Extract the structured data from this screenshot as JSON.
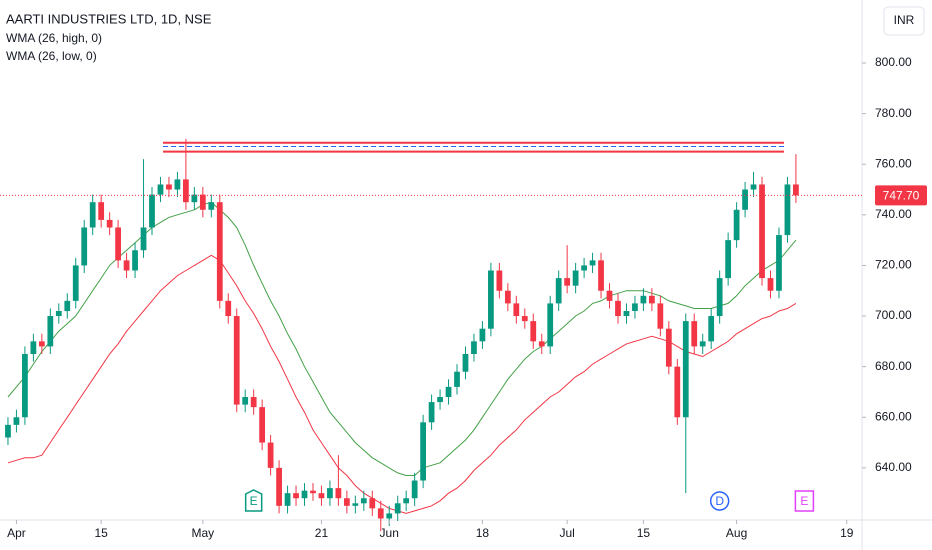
{
  "chart_data": {
    "type": "candlestick",
    "title": "AARTI INDUSTRIES LTD, 1D, NSE",
    "currency": "INR",
    "up_color": "#089981",
    "down_color": "#f23645",
    "open": [
      652,
      657,
      660,
      685,
      690,
      688,
      700,
      702,
      706,
      720,
      735,
      745,
      738,
      735,
      722,
      718,
      726,
      735,
      748,
      752,
      750,
      754,
      745,
      748,
      742,
      745,
      706,
      700,
      665,
      668,
      664,
      650,
      640,
      625,
      630,
      628,
      631,
      630,
      628,
      632,
      628,
      625,
      626,
      628,
      624,
      620,
      622,
      626,
      628,
      635,
      658,
      666,
      668,
      672,
      678,
      685,
      690,
      695,
      718,
      710,
      705,
      700,
      698,
      690,
      688,
      705,
      715,
      712,
      718,
      720,
      722,
      710,
      706,
      700,
      702,
      705,
      708,
      705,
      695,
      680,
      660,
      698,
      688,
      690,
      700,
      715,
      730,
      742,
      750,
      752,
      715,
      710,
      732,
      752
    ],
    "high": [
      660,
      663,
      688,
      693,
      693,
      703,
      705,
      709,
      723,
      738,
      748,
      748,
      741,
      738,
      725,
      729,
      762,
      751,
      755,
      755,
      757,
      770,
      751,
      751,
      748,
      748,
      709,
      703,
      671,
      671,
      667,
      653,
      643,
      633,
      633,
      634,
      634,
      633,
      635,
      645,
      631,
      629,
      631,
      631,
      627,
      625,
      629,
      631,
      638,
      661,
      669,
      671,
      675,
      681,
      688,
      693,
      698,
      721,
      721,
      713,
      708,
      703,
      701,
      693,
      708,
      718,
      728,
      721,
      723,
      725,
      725,
      713,
      709,
      705,
      708,
      711,
      711,
      708,
      698,
      683,
      701,
      701,
      693,
      703,
      718,
      733,
      745,
      753,
      757,
      755,
      718,
      735,
      755,
      764
    ],
    "low": [
      649,
      654,
      657,
      682,
      685,
      685,
      697,
      699,
      703,
      717,
      732,
      735,
      732,
      719,
      715,
      715,
      723,
      732,
      745,
      747,
      747,
      742,
      742,
      739,
      739,
      703,
      697,
      662,
      662,
      661,
      647,
      637,
      622,
      622,
      625,
      625,
      627,
      625,
      625,
      625,
      622,
      622,
      623,
      621,
      615,
      617,
      619,
      623,
      625,
      632,
      655,
      663,
      665,
      669,
      675,
      682,
      687,
      692,
      707,
      702,
      697,
      695,
      687,
      685,
      685,
      702,
      709,
      709,
      715,
      717,
      707,
      703,
      697,
      697,
      699,
      702,
      702,
      692,
      677,
      657,
      630,
      685,
      685,
      687,
      697,
      712,
      727,
      739,
      747,
      712,
      707,
      707,
      729,
      744.7
    ],
    "close": [
      657,
      660,
      685,
      690,
      688,
      700,
      702,
      706,
      720,
      735,
      745,
      738,
      735,
      722,
      718,
      726,
      735,
      748,
      752,
      750,
      754,
      745,
      748,
      742,
      745,
      706,
      700,
      665,
      668,
      664,
      650,
      640,
      625,
      630,
      628,
      631,
      630,
      628,
      632,
      628,
      625,
      626,
      628,
      624,
      620,
      622,
      626,
      628,
      635,
      658,
      666,
      668,
      672,
      678,
      685,
      690,
      695,
      718,
      710,
      705,
      700,
      698,
      690,
      688,
      705,
      715,
      712,
      718,
      720,
      722,
      710,
      706,
      700,
      702,
      705,
      708,
      705,
      695,
      680,
      660,
      698,
      688,
      690,
      700,
      715,
      730,
      742,
      750,
      752,
      715,
      710,
      732,
      752,
      747.7
    ],
    "series": [
      {
        "name": "WMA (26, high, 0)",
        "color": "#43a047",
        "values": [
          668,
          672,
          676,
          681,
          686,
          690,
          694,
          697,
          700,
          705,
          710,
          715,
          720,
          723,
          726,
          729,
          732,
          735,
          737,
          739,
          740,
          741,
          742,
          744,
          745,
          742,
          739,
          735,
          728,
          720,
          713,
          706,
          700,
          693,
          687,
          680,
          674,
          668,
          662,
          658,
          654,
          650,
          647,
          644,
          642,
          640,
          638,
          637,
          637,
          640,
          641,
          642,
          645,
          648,
          651,
          655,
          660,
          665,
          670,
          675,
          679,
          683,
          686,
          688,
          691,
          694,
          697,
          700,
          702,
          705,
          706,
          708,
          709,
          710,
          710,
          710,
          709,
          708,
          706,
          705,
          704,
          703,
          703,
          703,
          704,
          705,
          708,
          712,
          715,
          718,
          720,
          722,
          726,
          730
        ]
      },
      {
        "name": "WMA (26, low, 0)",
        "color": "#f23645",
        "values": [
          642,
          643,
          644,
          644,
          645,
          650,
          655,
          660,
          665,
          670,
          675,
          680,
          685,
          689,
          694,
          698,
          702,
          706,
          710,
          713,
          716,
          718,
          720,
          722,
          724,
          722,
          717,
          712,
          706,
          701,
          695,
          688,
          682,
          675,
          668,
          662,
          655,
          650,
          645,
          640,
          637,
          633,
          630,
          628,
          626,
          624,
          623,
          622,
          623,
          624,
          625,
          627,
          630,
          632,
          635,
          639,
          642,
          645,
          649,
          652,
          655,
          659,
          662,
          665,
          668,
          670,
          673,
          676,
          678,
          681,
          683,
          685,
          687,
          689,
          690,
          691,
          692,
          691,
          690,
          688,
          686,
          685,
          684,
          686,
          688,
          690,
          693,
          695,
          697,
          699,
          700,
          702,
          703,
          705
        ]
      }
    ],
    "levels": [
      {
        "value": 768.5,
        "color": "#f23645",
        "style": "solid"
      },
      {
        "value": 767,
        "color": "#2962ff",
        "style": "dashed"
      },
      {
        "value": 765,
        "color": "#f23645",
        "style": "solid"
      }
    ],
    "levels_start": 18.3,
    "last_price": {
      "value": 747.7,
      "label": "747.70"
    },
    "events": [
      {
        "index": 29,
        "label": "E",
        "color": "#089981"
      },
      {
        "index": 84,
        "label": "D",
        "color": "#2962ff"
      },
      {
        "index": 94,
        "label": "E",
        "color": "#e040fb"
      }
    ],
    "xlim": [
      -0.94,
      100.8
    ],
    "xticks": [
      {
        "value": 1,
        "label": "Apr"
      },
      {
        "value": 11,
        "label": "15"
      },
      {
        "value": 23,
        "label": "May"
      },
      {
        "value": 37,
        "label": "21"
      },
      {
        "value": 45,
        "label": "Jun"
      },
      {
        "value": 56,
        "label": "18"
      },
      {
        "value": 66,
        "label": "Jul"
      },
      {
        "value": 75,
        "label": "15"
      },
      {
        "value": 86,
        "label": "Aug"
      },
      {
        "value": 99,
        "label": "19"
      }
    ],
    "ylim": [
      619.4,
      824.9
    ],
    "yticks": [
      {
        "value": 640,
        "label": "640.00"
      },
      {
        "value": 660,
        "label": "660.00"
      },
      {
        "value": 680,
        "label": "680.00"
      },
      {
        "value": 700,
        "label": "700.00"
      },
      {
        "value": 720,
        "label": "720.00"
      },
      {
        "value": 740,
        "label": "740.00"
      },
      {
        "value": 760,
        "label": "760.00"
      },
      {
        "value": 780,
        "label": "780.00"
      },
      {
        "value": 800,
        "label": "800.00"
      }
    ],
    "grid": false
  }
}
